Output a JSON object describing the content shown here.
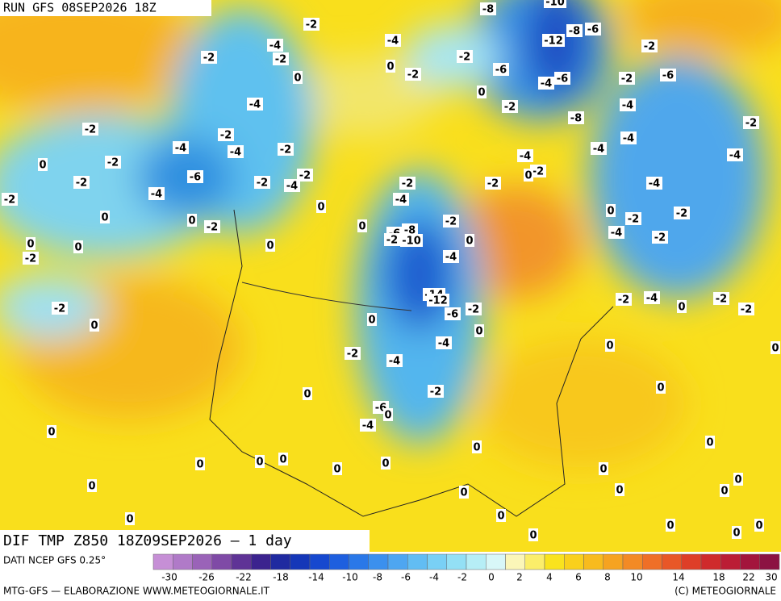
{
  "header": {
    "run": "RUN GFS 08SEP2026 18Z"
  },
  "map": {
    "title": "DIF TMP Z850 18Z09SEP2026 – 1 day",
    "contour_labels": [
      -2,
      -4,
      -4,
      -2,
      -2,
      0,
      0,
      -2,
      -2,
      -6,
      0,
      -8,
      -10,
      -12,
      -8,
      -6,
      -2,
      -4,
      -6,
      -2,
      -6,
      -4,
      -2,
      -4,
      -8,
      -2,
      -2,
      -4,
      -4,
      -2,
      -4,
      -2,
      -4,
      -4,
      -4,
      0,
      -2,
      -6,
      -2,
      -2,
      -2,
      -4,
      -2,
      -2,
      0,
      -2,
      -4,
      -4,
      -4,
      -2,
      0,
      0,
      0,
      -2,
      0,
      -2,
      0,
      -2,
      -2,
      -4,
      -2,
      -6,
      -8,
      -2,
      -10,
      0,
      0,
      0,
      -2,
      0,
      -4,
      -14,
      -12,
      -2,
      -4,
      0,
      -2,
      -2,
      -2,
      -2,
      -6,
      0,
      0,
      0,
      -4,
      0,
      -2,
      -4,
      0,
      -2,
      0,
      0,
      -6,
      0,
      -4,
      0,
      0,
      0,
      0,
      0,
      0,
      0,
      0,
      0,
      0,
      0,
      0,
      0,
      0,
      0,
      0,
      0,
      0,
      0,
      0
    ]
  },
  "legend": {
    "source": "DATI NCEP GFS 0.25°",
    "ticks": [
      -30,
      -26,
      -22,
      -18,
      -14,
      -10,
      -8,
      -6,
      -4,
      -2,
      0,
      2,
      4,
      6,
      8,
      10,
      14,
      18,
      22,
      30
    ]
  },
  "footer": {
    "left": "MTG-GFS — ELABORAZIONE WWW.METEOGIORNALE.IT",
    "right": "(C) METEOGIORNALE"
  }
}
